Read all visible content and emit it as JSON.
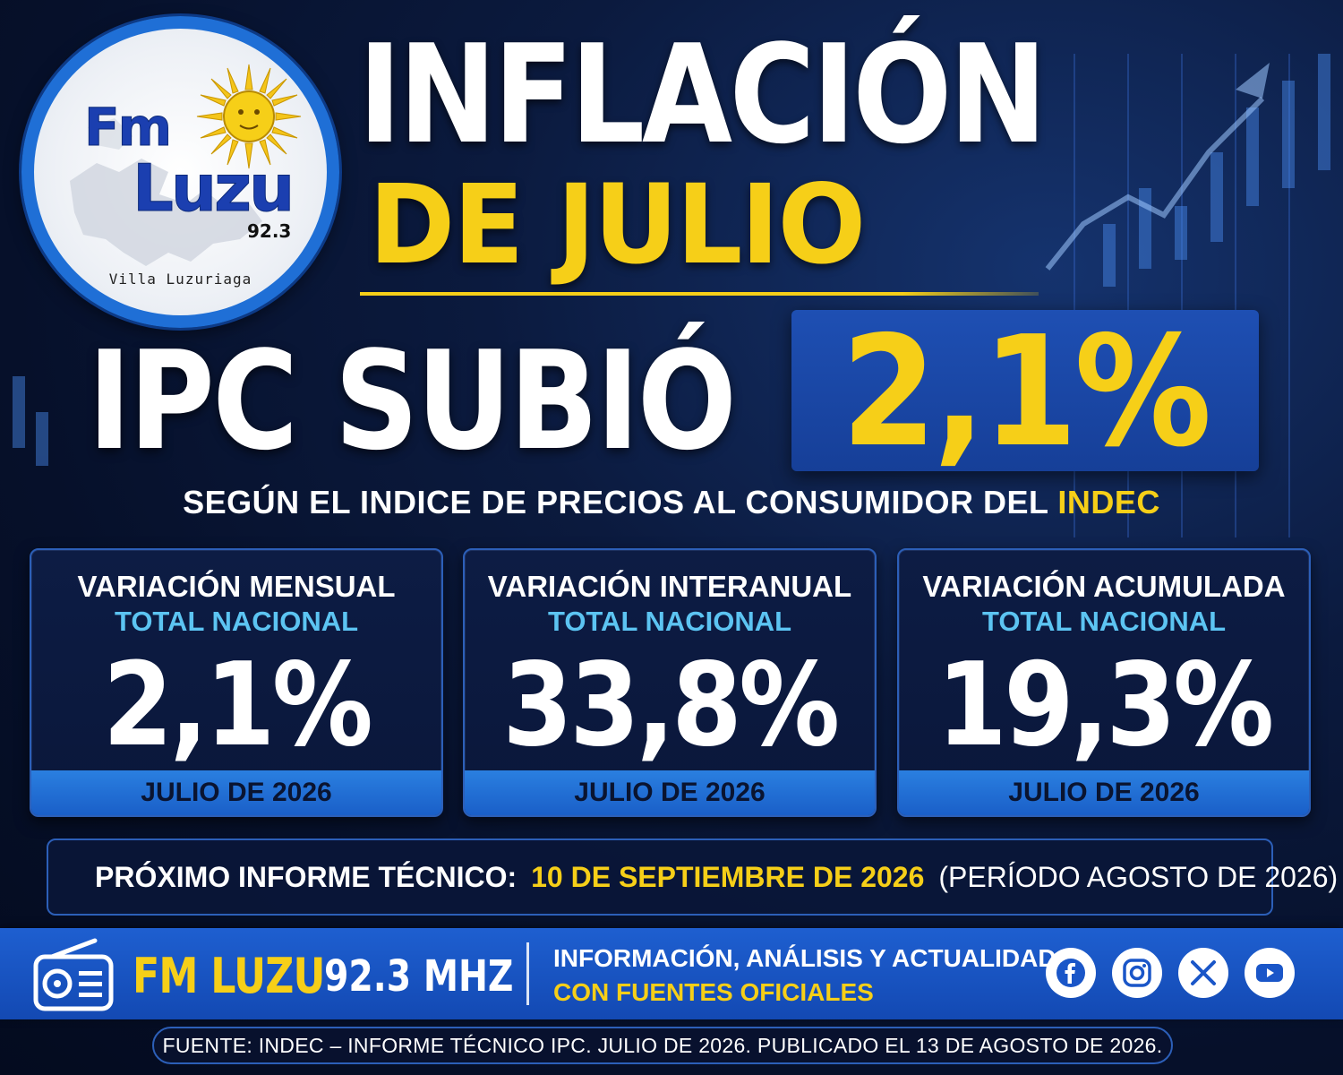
{
  "logo": {
    "fm": "Fm",
    "luzu": "Luzu",
    "frequency": "92.3",
    "place": "Villa Luzuriaga"
  },
  "headline": {
    "line1": "INFLACIÓN",
    "line2": "DE JULIO",
    "ipc_label": "IPC SUBIÓ",
    "ipc_value": "2,1%"
  },
  "subtitle": {
    "text": "SEGÚN EL INDICE DE PRECIOS AL CONSUMIDOR DEL",
    "highlight": "INDEC"
  },
  "cards": [
    {
      "title": "VARIACIÓN MENSUAL",
      "subtitle": "TOTAL NACIONAL",
      "value": "2,1%",
      "period": "JULIO DE 2026"
    },
    {
      "title": "VARIACIÓN INTERANUAL",
      "subtitle": "TOTAL NACIONAL",
      "value": "33,8%",
      "period": "JULIO DE 2026"
    },
    {
      "title": "VARIACIÓN ACUMULADA",
      "subtitle": "TOTAL NACIONAL",
      "value": "19,3%",
      "period": "JULIO DE 2026"
    }
  ],
  "next_report": {
    "label": "PRÓXIMO INFORME TÉCNICO:",
    "date": "10 DE SEPTIEMBRE DE 2026",
    "period": "(PERÍODO AGOSTO DE 2026)",
    "icon": "calendar-icon"
  },
  "footer": {
    "station": "FM LUZU",
    "frequency": "92.3 MHZ",
    "tagline1": "INFORMACIÓN, ANÁLISIS Y ACTUALIDAD",
    "tagline2": "CON FUENTES OFICIALES",
    "social_icons": [
      "facebook-icon",
      "instagram-icon",
      "x-icon",
      "youtube-icon"
    ]
  },
  "source": "FUENTE: INDEC – INFORME TÉCNICO IPC. JULIO DE 2026. PUBLICADO EL 13 DE AGOSTO DE 2026.",
  "colors": {
    "gold": "#f6cf18",
    "blue": "#1e5fd0",
    "cyan": "#5cc4f2",
    "navy": "#06102a"
  }
}
